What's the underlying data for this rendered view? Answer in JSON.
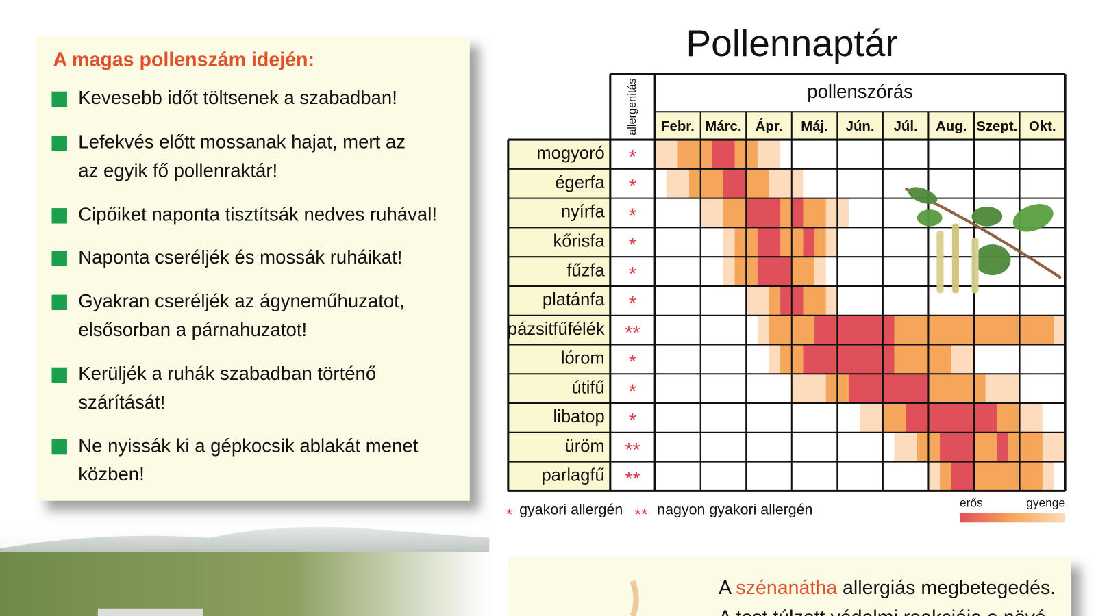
{
  "left": {
    "title": "A magas pollenszám idején:",
    "items": [
      [
        "Kevesebb időt töltsenek a szabadban!"
      ],
      [
        "Lefekvés előtt mossanak hajat, mert az",
        "az egyik fő pollenraktár!"
      ],
      [
        "Cipőiket naponta tisztítsák nedves ruhával!"
      ],
      [
        "Naponta cseréljék és mossák ruháikat!"
      ],
      [
        "Gyakran cseréljék az ágyneműhuzatot,",
        "elsősorban a párnahuzatot!"
      ],
      [
        "Kerüljék a ruhák szabadban történő",
        "szárítását!"
      ],
      [
        "Ne nyissák ki a gépkocsik ablakát menet",
        "közben!"
      ]
    ]
  },
  "calendar": {
    "title": "Pollennaptár",
    "allergen_header": "allergenitás",
    "season_header": "pollenszórás",
    "months": [
      "Febr.",
      "Márc.",
      "Ápr.",
      "Máj.",
      "Jún.",
      "Júl.",
      "Aug.",
      "Szept.",
      "Okt."
    ],
    "level_colors": [
      "#ffffff",
      "#fcdcbc",
      "#f5a65a",
      "#e0505a"
    ],
    "rows": [
      {
        "name": "mogyoró",
        "allergen": "*",
        "intensity": [
          1,
          1,
          2,
          2,
          2,
          3,
          3,
          2,
          2,
          1,
          1,
          0,
          0,
          0,
          0,
          0,
          0,
          0,
          0,
          0,
          0,
          0,
          0,
          0,
          0,
          0,
          0,
          0,
          0,
          0,
          0,
          0,
          0,
          0,
          0,
          0
        ]
      },
      {
        "name": "égerfa",
        "allergen": "*",
        "intensity": [
          0,
          1,
          1,
          2,
          2,
          2,
          3,
          3,
          2,
          2,
          1,
          1,
          1,
          0,
          0,
          0,
          0,
          0,
          0,
          0,
          0,
          0,
          0,
          0,
          0,
          0,
          0,
          0,
          0,
          0,
          0,
          0,
          0,
          0,
          0,
          0
        ]
      },
      {
        "name": "nyírfa",
        "allergen": "*",
        "intensity": [
          0,
          0,
          0,
          0,
          1,
          1,
          2,
          2,
          3,
          3,
          3,
          2,
          3,
          2,
          2,
          1,
          1,
          0,
          0,
          0,
          0,
          0,
          0,
          0,
          0,
          0,
          0,
          0,
          0,
          0,
          0,
          0,
          0,
          0,
          0,
          0
        ]
      },
      {
        "name": "kőrisfa",
        "allergen": "*",
        "intensity": [
          0,
          0,
          0,
          0,
          0,
          0,
          1,
          2,
          2,
          3,
          3,
          2,
          2,
          3,
          2,
          1,
          0,
          0,
          0,
          0,
          0,
          0,
          0,
          0,
          0,
          0,
          0,
          0,
          0,
          0,
          0,
          0,
          0,
          0,
          0,
          0
        ]
      },
      {
        "name": "fűzfa",
        "allergen": "*",
        "intensity": [
          0,
          0,
          0,
          0,
          0,
          0,
          1,
          2,
          2,
          3,
          3,
          3,
          2,
          2,
          1,
          0,
          0,
          0,
          0,
          0,
          0,
          0,
          0,
          0,
          0,
          0,
          0,
          0,
          0,
          0,
          0,
          0,
          0,
          0,
          0,
          0
        ]
      },
      {
        "name": "platánfa",
        "allergen": "*",
        "intensity": [
          0,
          0,
          0,
          0,
          0,
          0,
          0,
          0,
          1,
          1,
          2,
          3,
          3,
          2,
          2,
          1,
          0,
          0,
          0,
          0,
          0,
          0,
          0,
          0,
          0,
          0,
          0,
          0,
          0,
          0,
          0,
          0,
          0,
          0,
          0,
          0
        ]
      },
      {
        "name": "pázsitfűfélék",
        "allergen": "**",
        "intensity": [
          0,
          0,
          0,
          0,
          0,
          0,
          0,
          0,
          0,
          1,
          2,
          2,
          2,
          2,
          3,
          3,
          3,
          3,
          3,
          3,
          3,
          2,
          2,
          2,
          2,
          2,
          2,
          2,
          2,
          2,
          2,
          2,
          2,
          2,
          2,
          1
        ]
      },
      {
        "name": "lórom",
        "allergen": "*",
        "intensity": [
          0,
          0,
          0,
          0,
          0,
          0,
          0,
          0,
          0,
          0,
          1,
          2,
          2,
          3,
          3,
          3,
          3,
          3,
          3,
          3,
          3,
          2,
          2,
          2,
          2,
          2,
          1,
          1,
          0,
          0,
          0,
          0,
          0,
          0,
          0,
          0
        ]
      },
      {
        "name": "útifű",
        "allergen": "*",
        "intensity": [
          0,
          0,
          0,
          0,
          0,
          0,
          0,
          0,
          0,
          0,
          0,
          0,
          1,
          1,
          1,
          2,
          2,
          3,
          3,
          3,
          3,
          3,
          3,
          3,
          2,
          2,
          2,
          2,
          2,
          1,
          1,
          1,
          0,
          0,
          0,
          0
        ]
      },
      {
        "name": "libatop",
        "allergen": "*",
        "intensity": [
          0,
          0,
          0,
          0,
          0,
          0,
          0,
          0,
          0,
          0,
          0,
          0,
          0,
          0,
          0,
          0,
          0,
          0,
          1,
          1,
          2,
          2,
          3,
          3,
          3,
          3,
          3,
          3,
          3,
          3,
          2,
          2,
          1,
          1,
          0,
          0
        ]
      },
      {
        "name": "üröm",
        "allergen": "**",
        "intensity": [
          0,
          0,
          0,
          0,
          0,
          0,
          0,
          0,
          0,
          0,
          0,
          0,
          0,
          0,
          0,
          0,
          0,
          0,
          0,
          0,
          0,
          1,
          1,
          2,
          2,
          3,
          3,
          3,
          2,
          2,
          3,
          2,
          2,
          2,
          1,
          1
        ]
      },
      {
        "name": "parlagfű",
        "allergen": "**",
        "intensity": [
          0,
          0,
          0,
          0,
          0,
          0,
          0,
          0,
          0,
          0,
          0,
          0,
          0,
          0,
          0,
          0,
          0,
          0,
          0,
          0,
          0,
          0,
          0,
          0,
          1,
          2,
          3,
          3,
          2,
          2,
          2,
          2,
          2,
          2,
          1,
          0
        ]
      }
    ],
    "legend": {
      "single_star": "*",
      "single_label": "gyakori allergén",
      "double_star": "**",
      "double_label": "nagyon gyakori allergén",
      "strong": "erős",
      "weak": "gyenge"
    }
  },
  "info": {
    "line1_before": "A ",
    "line1_highlight": "szénanátha",
    "line1_after": " allergiás megbetegedés.",
    "line2": "A test túlzott védelmi reakciója a növé"
  }
}
